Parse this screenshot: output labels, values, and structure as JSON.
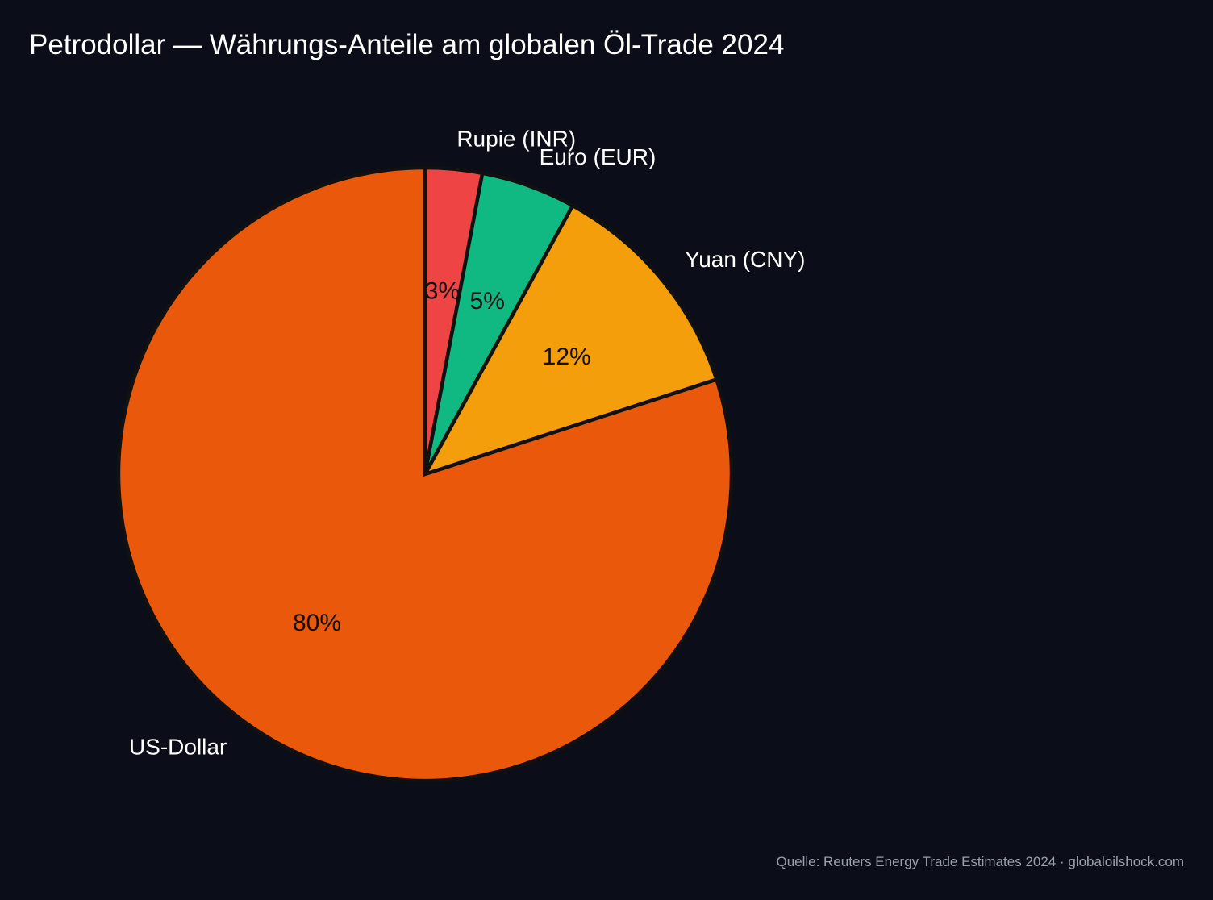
{
  "chart_data": {
    "type": "pie",
    "title": "Petrodollar — Währungs-Anteile am globalen Öl-Trade 2024",
    "start_angle": "top",
    "direction": "clockwise",
    "slices": [
      {
        "label": "Rupie (INR)",
        "value": 3,
        "value_label": "3%",
        "color": "#ef4444"
      },
      {
        "label": "Euro (EUR)",
        "value": 5,
        "value_label": "5%",
        "color": "#10b981"
      },
      {
        "label": "Yuan (CNY)",
        "value": 12,
        "value_label": "12%",
        "color": "#f59e0b"
      },
      {
        "label": "US-Dollar",
        "value": 80,
        "value_label": "80%",
        "color": "#ea580c"
      }
    ],
    "edge_color": "#111111",
    "label_color": "#ffffff",
    "value_label_color": "#111111",
    "source": "Quelle: Reuters Energy Trade Estimates 2024 · globaloilshock.com"
  }
}
